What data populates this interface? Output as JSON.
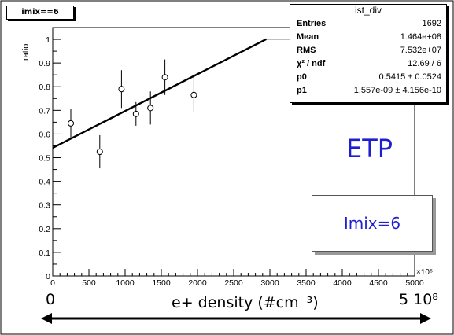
{
  "tag": "imix==6",
  "stats": {
    "title": "ist_div",
    "rows": [
      {
        "k": "Entries",
        "v": "1692"
      },
      {
        "k": "Mean",
        "v": "1.464e+08"
      },
      {
        "k": "RMS",
        "v": "7.532e+07"
      },
      {
        "k": "χ² / ndf",
        "v": "12.69 / 6"
      },
      {
        "k": "p0",
        "v": "0.5415 ± 0.0524"
      },
      {
        "k": "p1",
        "v": "1.557e-09 ± 4.156e-10"
      }
    ]
  },
  "annotations": {
    "etp": "ETP",
    "imix": "Imix=6",
    "x_start": "0",
    "x_end": "5 10⁸",
    "x_caption": "e+ density (#cm⁻³)"
  },
  "chart_data": {
    "type": "scatter",
    "ylabel": "ratio",
    "x_multiplier_label": "×10⁵",
    "xlim": [
      0,
      5000
    ],
    "ylim": [
      0,
      1.05
    ],
    "x_ticks": [
      0,
      500,
      1000,
      1500,
      2000,
      2500,
      3000,
      3500,
      4000,
      4500,
      5000
    ],
    "y_ticks": [
      0,
      0.1,
      0.2,
      0.3,
      0.4,
      0.5,
      0.6,
      0.7,
      0.8,
      0.9,
      1
    ],
    "grid": false,
    "series": [
      {
        "x": [
          250,
          650,
          950,
          1150,
          1350,
          1550,
          1950
        ],
        "y": [
          0.645,
          0.525,
          0.79,
          0.685,
          0.71,
          0.84,
          0.765
        ],
        "err": [
          0.06,
          0.07,
          0.08,
          0.05,
          0.07,
          0.075,
          0.075
        ]
      }
    ],
    "fit": {
      "type": "linear",
      "p0": 0.5415,
      "p1": 0.0001557,
      "x_range": [
        0,
        2950
      ]
    }
  }
}
